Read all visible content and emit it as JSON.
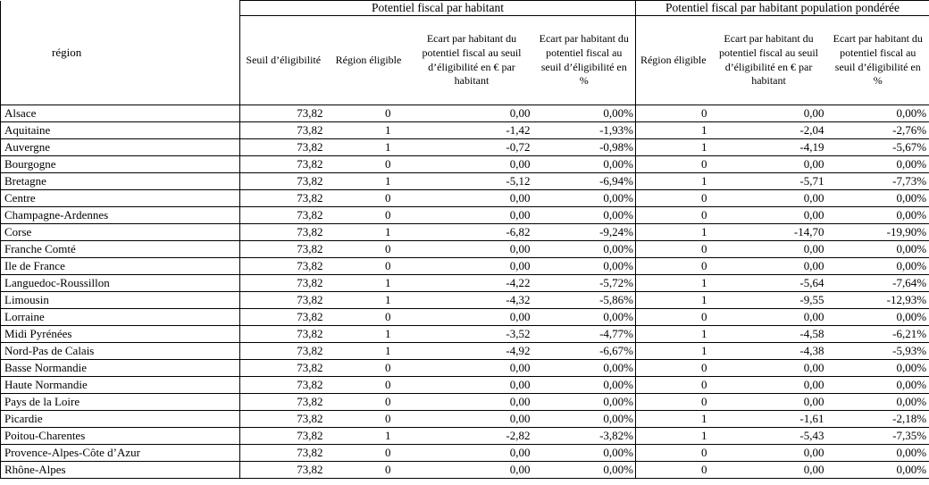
{
  "table": {
    "corner_header": "région",
    "group1_title": "Potentiel fiscal par habitant",
    "group2_title": "Potentiel fiscal par habitant population pondérée",
    "columns": [
      "Seuil d’éligibilité",
      "Région éligible",
      "Ecart par habitant du potentiel fiscal au seuil d’éligibilité en € par habitant",
      "Ecart par habitant du potentiel fiscal au seuil d’éligibilité en %",
      "Région éligible",
      "Ecart par habitant du potentiel fiscal au seuil d’éligibilité en € par habitant",
      "Ecart par habitant du potentiel fiscal au seuil d’éligibilité en %"
    ],
    "rows": [
      [
        "Alsace",
        "73,82",
        "0",
        "0,00",
        "0,00%",
        "0",
        "0,00",
        "0,00%"
      ],
      [
        "Aquitaine",
        "73,82",
        "1",
        "-1,42",
        "-1,93%",
        "1",
        "-2,04",
        "-2,76%"
      ],
      [
        "Auvergne",
        "73,82",
        "1",
        "-0,72",
        "-0,98%",
        "1",
        "-4,19",
        "-5,67%"
      ],
      [
        "Bourgogne",
        "73,82",
        "0",
        "0,00",
        "0,00%",
        "0",
        "0,00",
        "0,00%"
      ],
      [
        "Bretagne",
        "73,82",
        "1",
        "-5,12",
        "-6,94%",
        "1",
        "-5,71",
        "-7,73%"
      ],
      [
        "Centre",
        "73,82",
        "0",
        "0,00",
        "0,00%",
        "0",
        "0,00",
        "0,00%"
      ],
      [
        "Champagne-Ardennes",
        "73,82",
        "0",
        "0,00",
        "0,00%",
        "0",
        "0,00",
        "0,00%"
      ],
      [
        "Corse",
        "73,82",
        "1",
        "-6,82",
        "-9,24%",
        "1",
        "-14,70",
        "-19,90%"
      ],
      [
        "Franche Comté",
        "73,82",
        "0",
        "0,00",
        "0,00%",
        "0",
        "0,00",
        "0,00%"
      ],
      [
        "Ile de France",
        "73,82",
        "0",
        "0,00",
        "0,00%",
        "0",
        "0,00",
        "0,00%"
      ],
      [
        "Languedoc-Roussillon",
        "73,82",
        "1",
        "-4,22",
        "-5,72%",
        "1",
        "-5,64",
        "-7,64%"
      ],
      [
        "Limousin",
        "73,82",
        "1",
        "-4,32",
        "-5,86%",
        "1",
        "-9,55",
        "-12,93%"
      ],
      [
        "Lorraine",
        "73,82",
        "0",
        "0,00",
        "0,00%",
        "0",
        "0,00",
        "0,00%"
      ],
      [
        "Midi Pyrénées",
        "73,82",
        "1",
        "-3,52",
        "-4,77%",
        "1",
        "-4,58",
        "-6,21%"
      ],
      [
        "Nord-Pas de Calais",
        "73,82",
        "1",
        "-4,92",
        "-6,67%",
        "1",
        "-4,38",
        "-5,93%"
      ],
      [
        "Basse Normandie",
        "73,82",
        "0",
        "0,00",
        "0,00%",
        "0",
        "0,00",
        "0,00%"
      ],
      [
        "Haute Normandie",
        "73,82",
        "0",
        "0,00",
        "0,00%",
        "0",
        "0,00",
        "0,00%"
      ],
      [
        "Pays de la Loire",
        "73,82",
        "0",
        "0,00",
        "0,00%",
        "0",
        "0,00",
        "0,00%"
      ],
      [
        "Picardie",
        "73,82",
        "0",
        "0,00",
        "0,00%",
        "1",
        "-1,61",
        "-2,18%"
      ],
      [
        "Poitou-Charentes",
        "73,82",
        "1",
        "-2,82",
        "-3,82%",
        "1",
        "-5,43",
        "-7,35%"
      ],
      [
        "Provence-Alpes-Côte d’Azur",
        "73,82",
        "0",
        "0,00",
        "0,00%",
        "0",
        "0,00",
        "0,00%"
      ],
      [
        "Rhône-Alpes",
        "73,82",
        "0",
        "0,00",
        "0,00%",
        "0",
        "0,00",
        "0,00%"
      ]
    ]
  }
}
